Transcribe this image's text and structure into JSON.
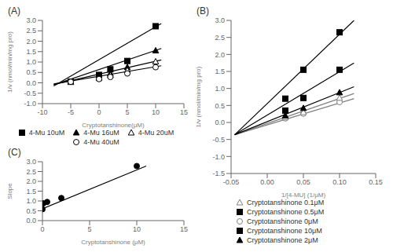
{
  "chart_data": [
    {
      "type": "scatter",
      "title": "(A)",
      "xlabel": "Cryptotanshinone(μM)",
      "ylabel": "1/v (nmol/min/mg pro)",
      "xlim": [
        -10,
        15
      ],
      "ylim": [
        -1,
        3
      ],
      "xticks": [
        -10,
        -5,
        0,
        5,
        10,
        15
      ],
      "yticks": [
        {
          "value": -1,
          "label": "-1.0"
        },
        -0.5,
        {
          "value": 0,
          "label": "0.0"
        },
        0.5,
        {
          "value": 1,
          "label": "1.0"
        },
        1.5,
        {
          "value": 2,
          "label": "2.0"
        },
        2.5,
        {
          "value": 3,
          "label": "3.0"
        }
      ],
      "grid": false,
      "legend": "bottom",
      "series": [
        {
          "type": "line",
          "color": "black",
          "x": [
            -8,
            11
          ],
          "values": [
            -0.15,
            2.85
          ]
        },
        {
          "type": "scatter",
          "name": "4-Mu 10uM",
          "marker": "square",
          "color": "black",
          "x": [
            -5,
            0,
            2,
            5,
            10
          ],
          "values": [
            0.05,
            0.38,
            0.65,
            1.05,
            2.72
          ]
        },
        {
          "type": "line",
          "color": "black",
          "x": [
            -8,
            11
          ],
          "values": [
            -0.1,
            1.65
          ]
        },
        {
          "type": "scatter",
          "name": "4-Mu 16uM",
          "marker": "triangle",
          "color": "black",
          "x": [
            -5,
            0,
            2,
            5,
            10
          ],
          "values": [
            0.05,
            0.28,
            0.45,
            0.75,
            1.55
          ]
        },
        {
          "type": "line",
          "color": "black",
          "x": [
            -8,
            11
          ],
          "values": [
            -0.08,
            1.1
          ]
        },
        {
          "type": "scatter",
          "name": "4-Mu 20uM",
          "marker": "triangle-open",
          "color": "black",
          "x": [
            -5,
            0,
            2,
            5,
            10
          ],
          "values": [
            0.05,
            0.22,
            0.37,
            0.6,
            1.02
          ]
        },
        {
          "type": "line",
          "color": "black",
          "x": [
            -8,
            11
          ],
          "values": [
            -0.05,
            0.82
          ]
        },
        {
          "type": "scatter",
          "name": "4-Mu 40uM",
          "marker": "circle-open",
          "color": "black",
          "x": [
            -5,
            0,
            2,
            5,
            10
          ],
          "values": [
            0.05,
            0.18,
            0.28,
            0.45,
            0.75
          ]
        }
      ]
    },
    {
      "type": "scatter",
      "title": "(B)",
      "xlabel": "1/[4-MU] (1/μM)",
      "ylabel": "1/v (nmol/min/mg pro)",
      "xlim": [
        -0.05,
        0.15
      ],
      "ylim": [
        -1.5,
        3
      ],
      "xticks": [
        -0.05,
        {
          "value": 0,
          "label": "0.00"
        },
        0.05,
        {
          "value": 0.1,
          "label": "0.10"
        },
        0.15
      ],
      "yticks": [
        -1.5,
        {
          "value": -1,
          "label": "-1.0"
        },
        -0.5,
        {
          "value": 0,
          "label": "0.0"
        },
        0.5,
        {
          "value": 1,
          "label": "1.0"
        },
        1.5,
        {
          "value": 2,
          "label": "2.0"
        },
        2.5,
        {
          "value": 3,
          "label": "3.0"
        }
      ],
      "grid": false,
      "legend": "bottom",
      "series": [
        {
          "type": "line",
          "color": "gray",
          "x": [
            -0.045,
            0.12
          ],
          "values": [
            -0.36,
            0.7
          ]
        },
        {
          "type": "scatter",
          "name": "Cryptotanshinone 0μM",
          "marker": "circle-open",
          "color": "gray",
          "x": [
            0.025,
            0.05,
            0.1
          ],
          "values": [
            0.12,
            0.26,
            0.6
          ]
        },
        {
          "type": "line",
          "color": "gray",
          "x": [
            -0.045,
            0.12
          ],
          "values": [
            -0.36,
            0.85
          ]
        },
        {
          "type": "scatter",
          "name": "Cryptotanshinone 0.1μM",
          "marker": "triangle-open",
          "color": "gray",
          "x": [
            0.025,
            0.05,
            0.1
          ],
          "values": [
            0.15,
            0.3,
            0.72
          ]
        },
        {
          "type": "line",
          "color": "black",
          "x": [
            -0.045,
            0.12
          ],
          "values": [
            -0.36,
            1.75
          ]
        },
        {
          "type": "scatter",
          "name": "Cryptotanshinone 0.5μM",
          "marker": "square",
          "color": "black",
          "x": [
            0.025,
            0.05,
            0.1
          ],
          "values": [
            0.35,
            0.72,
            1.55
          ]
        },
        {
          "type": "line",
          "color": "black",
          "x": [
            -0.045,
            0.12
          ],
          "values": [
            -0.36,
            1.05
          ]
        },
        {
          "type": "scatter",
          "name": "Cryptotanshinone 2μM",
          "marker": "triangle",
          "color": "black",
          "x": [
            0.025,
            0.05,
            0.1
          ],
          "values": [
            0.2,
            0.42,
            0.88
          ]
        },
        {
          "type": "line",
          "color": "black",
          "x": [
            -0.045,
            0.12
          ],
          "values": [
            -0.36,
            3.0
          ]
        },
        {
          "type": "scatter",
          "name": "Cryptotanshinone 10μM",
          "marker": "square",
          "color": "black",
          "x": [
            0.025,
            0.05,
            0.1
          ],
          "values": [
            0.7,
            1.55,
            2.65
          ]
        }
      ]
    },
    {
      "type": "scatter",
      "title": "(C)",
      "xlabel": "Cryptotanshinone (μM)",
      "ylabel": "Slope",
      "xlim": [
        0,
        15
      ],
      "ylim": [
        0,
        3
      ],
      "xticks": [
        0,
        5,
        10,
        15
      ],
      "yticks": [
        {
          "value": 0,
          "label": "0.0"
        },
        0.5,
        {
          "value": 1,
          "label": "1.0"
        },
        1.5,
        {
          "value": 2,
          "label": "2.0"
        },
        2.5,
        {
          "value": 3,
          "label": "3.0"
        }
      ],
      "grid": false,
      "series": [
        {
          "type": "scatter",
          "marker": "circle",
          "color": "black",
          "x": [
            0,
            0.1,
            0.5,
            2,
            10
          ],
          "values": [
            0.58,
            0.88,
            0.95,
            1.15,
            2.78
          ]
        },
        {
          "type": "line",
          "color": "black",
          "x": [
            0,
            11
          ],
          "values": [
            0.6,
            2.78
          ]
        }
      ]
    }
  ]
}
